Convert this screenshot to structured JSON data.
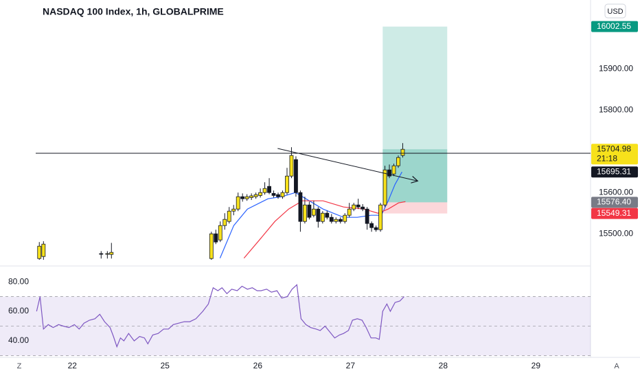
{
  "chart_data": {
    "type": "candlestick",
    "title": "NASDAQ 100 Index, 1h, GLOBALPRIME",
    "currency": "USD",
    "x": [
      0.644,
      0.689,
      1.311,
      1.378,
      1.422,
      2.5,
      2.548,
      2.596,
      2.644,
      2.692,
      2.74,
      2.788,
      2.836,
      2.884,
      2.932,
      2.98,
      3.028,
      3.076,
      3.124,
      3.172,
      3.22,
      3.268,
      3.316,
      3.364,
      3.412,
      3.46,
      3.508,
      3.556,
      3.604,
      3.652,
      3.7,
      3.748,
      3.796,
      3.844,
      3.892,
      3.94,
      3.988,
      4.036,
      4.084,
      4.132,
      4.18,
      4.228,
      4.276,
      4.324,
      4.372,
      4.42,
      4.468,
      4.516,
      4.564
    ],
    "open": [
      15440,
      15445,
      15452,
      15451,
      15450,
      15440,
      15500,
      15485,
      15520,
      15530,
      15555,
      15560,
      15590,
      15585,
      15588,
      15590,
      15593,
      15600,
      15615,
      15598,
      15595,
      15590,
      15600,
      15640,
      15680,
      15600,
      15530,
      15570,
      15545,
      15560,
      15530,
      15550,
      15540,
      15530,
      15535,
      15530,
      15545,
      15560,
      15570,
      15565,
      15560,
      15525,
      15515,
      15510,
      15570,
      15655,
      15645,
      15665,
      15690
    ],
    "high": [
      15480,
      15482,
      15458,
      15458,
      15478,
      15505,
      15510,
      15530,
      15550,
      15565,
      15570,
      15600,
      15598,
      15596,
      15598,
      15600,
      15610,
      15625,
      15635,
      15605,
      15600,
      15605,
      15660,
      15710,
      15688,
      15605,
      15590,
      15578,
      15580,
      15565,
      15555,
      15556,
      15548,
      15540,
      15540,
      15550,
      15575,
      15575,
      15585,
      15572,
      15565,
      15530,
      15520,
      15575,
      15665,
      15668,
      15670,
      15690,
      15720
    ],
    "low": [
      15420,
      15420,
      15440,
      15440,
      15440,
      15430,
      15475,
      15480,
      15510,
      15525,
      15545,
      15555,
      15578,
      15580,
      15582,
      15585,
      15588,
      15595,
      15596,
      15588,
      15585,
      15585,
      15595,
      15635,
      15590,
      15505,
      15525,
      15535,
      15540,
      15515,
      15525,
      15535,
      15525,
      15525,
      15525,
      15525,
      15540,
      15555,
      15560,
      15555,
      15510,
      15505,
      15505,
      15505,
      15565,
      15635,
      15640,
      15660,
      15685
    ],
    "close": [
      15470,
      15475,
      15451,
      15452,
      15455,
      15500,
      15480,
      15520,
      15535,
      15555,
      15560,
      15590,
      15585,
      15590,
      15592,
      15595,
      15600,
      15610,
      15600,
      15593,
      15590,
      15600,
      15640,
      15690,
      15600,
      15530,
      15570,
      15540,
      15560,
      15530,
      15550,
      15540,
      15530,
      15535,
      15530,
      15545,
      15560,
      15570,
      15565,
      15560,
      15525,
      15515,
      15510,
      15570,
      15655,
      15640,
      15665,
      15685,
      15704.98
    ],
    "up_color": "#f7e11b",
    "down_color": "#131722",
    "xlim": [
      0.22,
      6.59
    ],
    "xticks": [
      {
        "value": 1,
        "label": "22"
      },
      {
        "value": 2,
        "label": "25"
      },
      {
        "value": 3,
        "label": "26"
      },
      {
        "value": 4,
        "label": "27"
      },
      {
        "value": 5,
        "label": "28"
      },
      {
        "value": 6,
        "label": "29"
      }
    ],
    "ylim": [
      15442,
      16067
    ],
    "yticks": [
      {
        "value": 15500,
        "label": "15500.00"
      },
      {
        "value": 15600,
        "label": "15600.00"
      },
      {
        "value": 15800,
        "label": "15800.00"
      },
      {
        "value": 15900,
        "label": "15900.00"
      }
    ],
    "last_price": {
      "value": 15704.98,
      "label": "15704.98"
    },
    "countdown": "21:18",
    "horizontal_line": {
      "value": 15695.31,
      "label": "15695.31"
    },
    "trend_line": {
      "x": [
        3.215,
        4.726
      ],
      "values": [
        15707,
        15628
      ]
    },
    "position": {
      "x": [
        4.348,
        5.044
      ],
      "target": {
        "value": 16002.55,
        "label": "16002.55"
      },
      "entry": {
        "value": 15576.4,
        "label": "15576.40"
      },
      "stop": {
        "value": 15549.31,
        "label": "15549.31"
      }
    },
    "moving_averages": [
      {
        "color": "#2962ff",
        "x": [
          2.593,
          2.741,
          2.889,
          3.111,
          3.259,
          3.407,
          3.519,
          3.704,
          3.926,
          4.074,
          4.222,
          4.333,
          4.407,
          4.481,
          4.556
        ],
        "values": [
          15441,
          15520,
          15560,
          15585,
          15590,
          15600,
          15585,
          15560,
          15540,
          15540,
          15545,
          15545,
          15580,
          15620,
          15650
        ]
      },
      {
        "color": "#f23645",
        "x": [
          2.852,
          3.037,
          3.185,
          3.333,
          3.481,
          3.704,
          3.926,
          4.148,
          4.296,
          4.407,
          4.519,
          4.593
        ],
        "values": [
          15441,
          15490,
          15530,
          15560,
          15580,
          15580,
          15565,
          15560,
          15550,
          15560,
          15575,
          15578
        ]
      }
    ],
    "rsi": {
      "type": "line",
      "color": "#7e57c2",
      "x": [
        0.615,
        0.652,
        0.689,
        0.741,
        0.793,
        0.852,
        0.904,
        0.963,
        1.022,
        1.074,
        1.126,
        1.185,
        1.244,
        1.296,
        1.348,
        1.407,
        1.444,
        1.481,
        1.519,
        1.556,
        1.607,
        1.667,
        1.726,
        1.778,
        1.815,
        1.867,
        1.926,
        1.985,
        2.037,
        2.089,
        2.148,
        2.207,
        2.267,
        2.333,
        2.407,
        2.467,
        2.519,
        2.57,
        2.615,
        2.667,
        2.719,
        2.778,
        2.83,
        2.889,
        2.941,
        2.993,
        3.037,
        3.096,
        3.148,
        3.207,
        3.259,
        3.319,
        3.37,
        3.422,
        3.467,
        3.519,
        3.57,
        3.63,
        3.674,
        3.726,
        3.778,
        3.83,
        3.881,
        3.926,
        3.978,
        4.022,
        4.074,
        4.126,
        4.17,
        4.222,
        4.274,
        4.311,
        4.348,
        4.393,
        4.43,
        4.481,
        4.533,
        4.578
      ],
      "values": [
        60,
        70,
        48,
        51,
        49,
        51,
        50,
        49,
        51,
        48,
        52,
        54,
        55,
        58,
        53,
        49,
        43,
        36,
        42,
        40,
        45,
        40,
        43,
        42,
        38,
        44,
        45,
        48,
        48,
        51,
        52,
        53,
        53,
        55,
        60,
        65,
        76,
        74,
        76,
        72,
        75,
        74,
        77,
        75,
        76,
        74,
        74,
        75,
        73,
        74,
        69,
        70,
        75,
        78,
        55,
        51,
        49,
        48,
        47,
        50,
        46,
        42,
        44,
        45,
        47,
        54,
        55,
        54,
        49,
        42,
        42,
        41,
        60,
        65,
        60,
        66,
        67,
        70
      ],
      "ylim": [
        28.8,
        84.7
      ],
      "yticks": [
        {
          "value": 80,
          "label": "80.00"
        },
        {
          "value": 60,
          "label": "60.00"
        },
        {
          "value": 40,
          "label": "40.00"
        }
      ],
      "band": [
        30,
        70
      ],
      "midline": 50
    },
    "scale_buttons": [
      "Z",
      "A"
    ]
  }
}
